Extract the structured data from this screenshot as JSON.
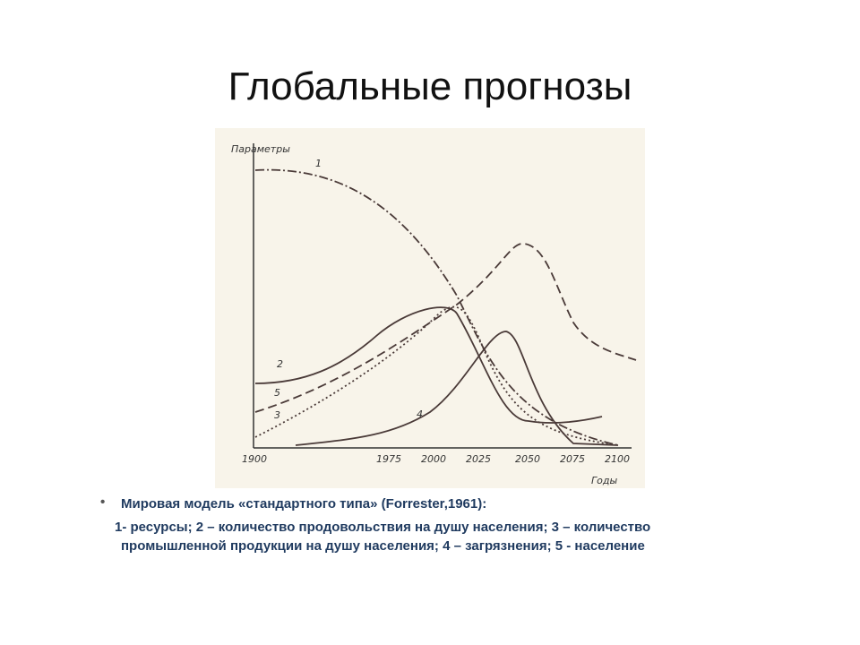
{
  "header": {
    "title": "Глобальные прогнозы"
  },
  "figure": {
    "y_axis_label": "Параметры",
    "x_axis_label": "Годы",
    "x_tick_labels": [
      "1900",
      "1975",
      "2000",
      "2025",
      "2050",
      "2075",
      "2100"
    ],
    "curve_labels": [
      "1",
      "2",
      "5",
      "3",
      "4"
    ]
  },
  "body": {
    "bullet": "Мировая модель «стандартного типа» (Forrester,1961):",
    "lines": [
      "1- ресурсы; 2 – количество продовольствия на душу населения; 3 – количество",
      "промышленной продукции на душу населения; 4 – загрязнения; 5 - население"
    ]
  }
}
